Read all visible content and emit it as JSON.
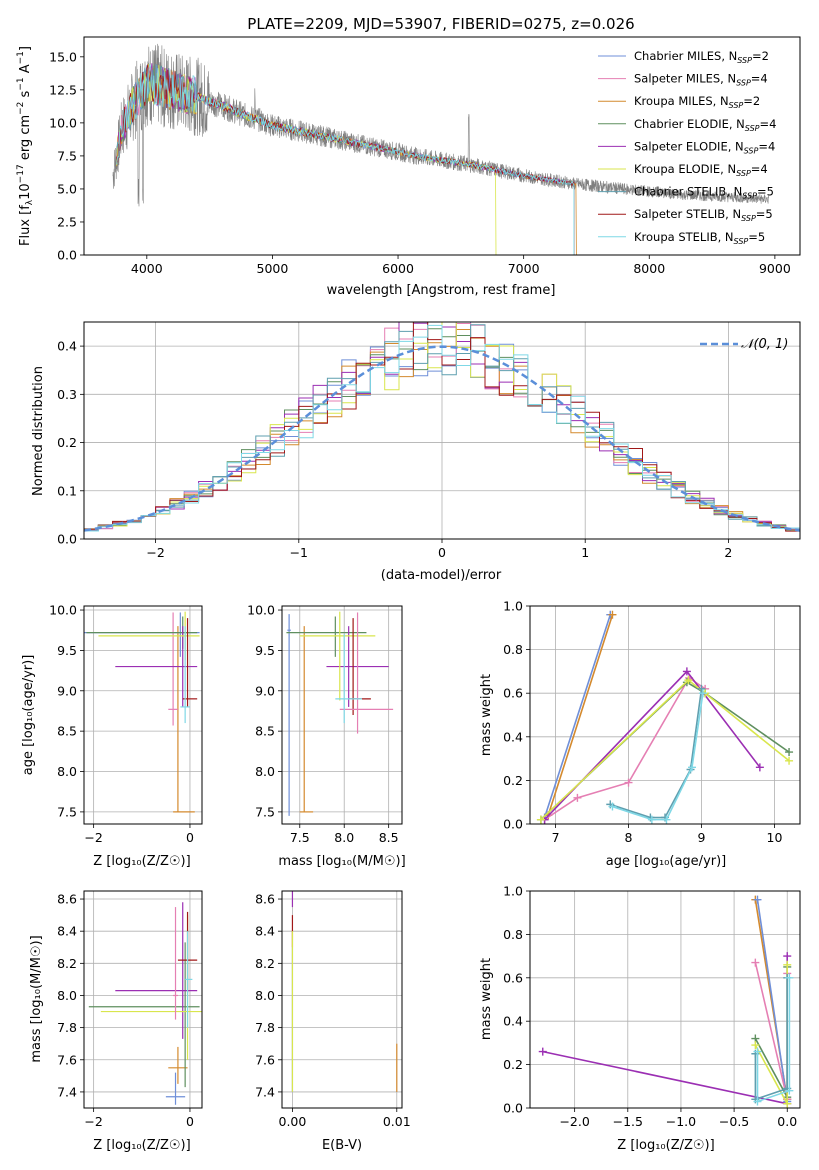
{
  "chart_data": [
    {
      "id": "spectrum",
      "type": "line",
      "title": "PLATE=2209, MJD=53907, FIBERID=0275, z=0.026",
      "xlabel": "wavelength [Angstrom, rest frame]",
      "ylabel_parts": [
        "Flux [f",
        "λ",
        "10",
        "−17",
        " erg cm",
        "−2",
        " s",
        "−1",
        " A",
        "−1",
        "]"
      ],
      "xlim": [
        3500,
        9200
      ],
      "ylim": [
        0,
        16.5
      ],
      "xticks": [
        4000,
        5000,
        6000,
        7000,
        8000,
        9000
      ],
      "yticks": [
        0.0,
        2.5,
        5.0,
        7.5,
        10.0,
        12.5,
        15.0
      ],
      "legend_position": "top-right",
      "observed_color": "#808080",
      "legend": [
        {
          "name": "Chabrier MILES",
          "nssp": "2",
          "color": "#6f8fd8"
        },
        {
          "name": "Salpeter MILES",
          "nssp": "4",
          "color": "#e57fb3"
        },
        {
          "name": "Kroupa MILES",
          "nssp": "2",
          "color": "#d48a2e"
        },
        {
          "name": "Chabrier ELODIE",
          "nssp": "4",
          "color": "#5f8f5f"
        },
        {
          "name": "Salpeter ELODIE",
          "nssp": "4",
          "color": "#9b2fb3"
        },
        {
          "name": "Kroupa ELODIE",
          "nssp": "4",
          "color": "#d9e64d"
        },
        {
          "name": "Chabrier STELIB",
          "nssp": "5",
          "color": "#5f9faf"
        },
        {
          "name": "Salpeter STELIB",
          "nssp": "5",
          "color": "#a01818"
        },
        {
          "name": "Kroupa STELIB",
          "nssp": "5",
          "color": "#7fd8e6"
        }
      ],
      "continuum": {
        "x": [
          3730,
          3800,
          3900,
          4000,
          4100,
          4200,
          4300,
          4400,
          4500,
          4600,
          4700,
          4800,
          4900,
          5000,
          5200,
          5400,
          5600,
          5800,
          6000,
          6200,
          6400,
          6600,
          6800,
          7000,
          7200,
          7400,
          7600,
          7800,
          8000,
          8200,
          8400,
          8600,
          8800,
          8950
        ],
        "y": [
          6.0,
          9.5,
          11.5,
          13.0,
          12.8,
          12.5,
          12.2,
          12.0,
          11.6,
          11.3,
          10.9,
          10.5,
          10.2,
          9.8,
          9.4,
          9.0,
          8.6,
          8.2,
          7.8,
          7.4,
          7.1,
          6.8,
          6.4,
          6.0,
          5.7,
          5.4,
          5.2,
          5.0,
          4.8,
          4.6,
          4.5,
          4.4,
          4.3,
          4.2
        ]
      }
    },
    {
      "id": "residuals",
      "type": "step",
      "xlabel": "(data-model)/error",
      "ylabel": "Normed distribution",
      "xlim": [
        -2.5,
        2.5
      ],
      "ylim": [
        0,
        0.45
      ],
      "xticks": [
        -2,
        -1,
        0,
        1,
        2
      ],
      "yticks": [
        0.0,
        0.1,
        0.2,
        0.3,
        0.4
      ],
      "legend_label": "𝒩(0, 1)",
      "legend_position": "top-right",
      "gaussian_color": "#5b8fd9",
      "bin_edges_start": -2.5,
      "bin_width": 0.1
    },
    {
      "id": "age-z",
      "type": "errorbar",
      "xlabel": "Z [log₁₀(Z/Z☉)]",
      "ylabel": "age  [log₁₀(age/yr)]",
      "xlim": [
        -2.2,
        0.25
      ],
      "ylim": [
        7.35,
        10.05
      ],
      "xticks": [
        -2,
        0
      ],
      "yticks": [
        7.5,
        8.0,
        8.5,
        9.0,
        9.5,
        10.0
      ],
      "series": [
        {
          "color": "#6f8fd8",
          "x": -0.2,
          "y": 9.72,
          "xerr": [
            2.0,
            0.4
          ],
          "yerr": [
            0.3,
            0.25
          ]
        },
        {
          "color": "#d48a2e",
          "x": -0.25,
          "y": 7.5,
          "xerr": [
            0.1,
            0.35
          ],
          "yerr": [
            0.0,
            2.3
          ]
        },
        {
          "color": "#e57fb3",
          "x": -0.35,
          "y": 8.77,
          "xerr": [
            0.1,
            0.1
          ],
          "yerr": [
            0.2,
            1.2
          ]
        },
        {
          "color": "#5f8f5f",
          "x": -0.15,
          "y": 9.72,
          "xerr": [
            2.0,
            0.3
          ],
          "yerr": [
            0.2,
            0.2
          ]
        },
        {
          "color": "#9b2fb3",
          "x": -0.15,
          "y": 9.3,
          "xerr": [
            1.4,
            0.3
          ],
          "yerr": [
            0.5,
            0.5
          ]
        },
        {
          "color": "#d9e64d",
          "x": -0.1,
          "y": 9.68,
          "xerr": [
            1.8,
            0.3
          ],
          "yerr": [
            0.3,
            0.3
          ]
        },
        {
          "color": "#a01818",
          "x": -0.05,
          "y": 8.9,
          "xerr": [
            0.1,
            0.2
          ],
          "yerr": [
            0.1,
            1.0
          ]
        },
        {
          "color": "#7fd8e6",
          "x": -0.1,
          "y": 8.8,
          "xerr": [
            0.1,
            0.1
          ],
          "yerr": [
            0.2,
            1.0
          ]
        }
      ]
    },
    {
      "id": "age-mass",
      "type": "errorbar",
      "xlabel": "mass [log₁₀(M/M☉)]",
      "xlim": [
        7.3,
        8.65
      ],
      "ylim": [
        7.35,
        10.05
      ],
      "xticks": [
        7.5,
        8.0,
        8.5
      ],
      "yticks": [
        7.5,
        8.0,
        8.5,
        9.0,
        9.5,
        10.0
      ],
      "series": [
        {
          "color": "#6f8fd8",
          "x": 7.38,
          "y": 9.75,
          "xerr": [
            0.02,
            0.02
          ],
          "yerr": [
            2.3,
            0.2
          ]
        },
        {
          "color": "#d48a2e",
          "x": 7.55,
          "y": 7.5,
          "xerr": [
            0.05,
            0.1
          ],
          "yerr": [
            0.0,
            2.3
          ]
        },
        {
          "color": "#5f8f5f",
          "x": 7.9,
          "y": 9.72,
          "xerr": [
            0.55,
            0.35
          ],
          "yerr": [
            0.3,
            0.2
          ]
        },
        {
          "color": "#9b2fb3",
          "x": 8.05,
          "y": 9.3,
          "xerr": [
            0.25,
            0.45
          ],
          "yerr": [
            0.5,
            0.5
          ]
        },
        {
          "color": "#d9e64d",
          "x": 7.95,
          "y": 9.68,
          "xerr": [
            0.45,
            0.4
          ],
          "yerr": [
            0.8,
            0.3
          ]
        },
        {
          "color": "#a01818",
          "x": 8.1,
          "y": 8.9,
          "xerr": [
            0.05,
            0.2
          ],
          "yerr": [
            0.2,
            1.0
          ]
        },
        {
          "color": "#e57fb3",
          "x": 8.15,
          "y": 8.77,
          "xerr": [
            0.2,
            0.4
          ],
          "yerr": [
            0.3,
            1.2
          ]
        },
        {
          "color": "#7fd8e6",
          "x": 8.0,
          "y": 8.9,
          "xerr": [
            0.1,
            0.2
          ],
          "yerr": [
            0.3,
            0.8
          ]
        }
      ]
    },
    {
      "id": "weight-age",
      "type": "line",
      "xlabel": "age  [log₁₀(age/yr)]",
      "ylabel": "mass weight",
      "xlim": [
        6.65,
        10.35
      ],
      "ylim": [
        0,
        1.0
      ],
      "xticks": [
        7,
        8,
        9,
        10
      ],
      "yticks": [
        0.0,
        0.2,
        0.4,
        0.6,
        0.8,
        1.0
      ],
      "series": [
        {
          "color": "#6f8fd8",
          "x": [
            6.85,
            7.75
          ],
          "y": [
            0.03,
            0.96
          ]
        },
        {
          "color": "#d48a2e",
          "x": [
            6.9,
            7.78
          ],
          "y": [
            0.04,
            0.96
          ]
        },
        {
          "color": "#e57fb3",
          "x": [
            6.85,
            7.3,
            8.0,
            8.83,
            9.05
          ],
          "y": [
            0.02,
            0.12,
            0.19,
            0.67,
            0.62
          ]
        },
        {
          "color": "#5f8f5f",
          "x": [
            6.8,
            8.8,
            9.05,
            10.2
          ],
          "y": [
            0.02,
            0.65,
            0.6,
            0.33
          ]
        },
        {
          "color": "#9b2fb3",
          "x": [
            6.85,
            8.8,
            9.8
          ],
          "y": [
            0.02,
            0.7,
            0.26
          ]
        },
        {
          "color": "#d9e64d",
          "x": [
            6.8,
            8.82,
            9.05,
            10.2
          ],
          "y": [
            0.02,
            0.66,
            0.6,
            0.29
          ]
        },
        {
          "color": "#5f9faf",
          "x": [
            7.75,
            8.3,
            8.5,
            8.85,
            9.0
          ],
          "y": [
            0.09,
            0.03,
            0.03,
            0.25,
            0.62
          ]
        },
        {
          "color": "#7fd8e6",
          "x": [
            7.78,
            8.32,
            8.52,
            8.87,
            9.02
          ],
          "y": [
            0.08,
            0.02,
            0.02,
            0.26,
            0.6
          ]
        }
      ]
    },
    {
      "id": "mass-z",
      "type": "errorbar",
      "xlabel": "Z [log₁₀(Z/Z☉)]",
      "ylabel": "mass [log₁₀(M/M☉)]",
      "xlim": [
        -2.2,
        0.25
      ],
      "ylim": [
        7.3,
        8.65
      ],
      "xticks": [
        -2,
        0
      ],
      "yticks": [
        7.4,
        7.6,
        7.8,
        8.0,
        8.2,
        8.4,
        8.6
      ],
      "series": [
        {
          "color": "#6f8fd8",
          "x": -0.3,
          "y": 7.37,
          "xerr": [
            0.2,
            0.2
          ],
          "yerr": [
            0.05,
            0.15
          ]
        },
        {
          "color": "#d48a2e",
          "x": -0.25,
          "y": 7.55,
          "xerr": [
            0.2,
            0.2
          ],
          "yerr": [
            0.1,
            0.13
          ]
        },
        {
          "color": "#5f8f5f",
          "x": -0.1,
          "y": 7.93,
          "xerr": [
            2.0,
            0.3
          ],
          "yerr": [
            0.5,
            0.4
          ]
        },
        {
          "color": "#9b2fb3",
          "x": -0.15,
          "y": 8.03,
          "xerr": [
            1.4,
            0.3
          ],
          "yerr": [
            0.3,
            0.55
          ]
        },
        {
          "color": "#d9e64d",
          "x": -0.05,
          "y": 7.9,
          "xerr": [
            1.8,
            0.3
          ],
          "yerr": [
            0.3,
            0.6
          ]
        },
        {
          "color": "#a01818",
          "x": -0.05,
          "y": 8.22,
          "xerr": [
            0.2,
            0.2
          ],
          "yerr": [
            0.2,
            0.3
          ]
        },
        {
          "color": "#e57fb3",
          "x": -0.3,
          "y": 8.0,
          "xerr": [
            0.05,
            0.05
          ],
          "yerr": [
            0.15,
            0.55
          ]
        },
        {
          "color": "#7fd8e6",
          "x": -0.05,
          "y": 8.1,
          "xerr": [
            0.05,
            0.1
          ],
          "yerr": [
            0.3,
            0.3
          ]
        }
      ]
    },
    {
      "id": "mass-ebv",
      "type": "errorbar",
      "xlabel": "E(B-V)",
      "xlim": [
        -0.001,
        0.0105
      ],
      "ylim": [
        7.3,
        8.65
      ],
      "xticks": [
        0.0,
        0.01
      ],
      "xtick_labels": [
        "0.00",
        "0.01"
      ],
      "yticks": [
        7.4,
        7.6,
        7.8,
        8.0,
        8.2,
        8.4,
        8.6
      ],
      "series": [
        {
          "color": "#6f8fd8",
          "x": 0.0,
          "y": 8.0,
          "yerr": [
            0.6,
            0.3
          ]
        },
        {
          "color": "#a01818",
          "x": 0.0,
          "y": 8.4,
          "yerr": [
            0.1,
            0.1
          ]
        },
        {
          "color": "#9b2fb3",
          "x": 0.0,
          "y": 8.6,
          "yerr": [
            0.05,
            0.05
          ]
        },
        {
          "color": "#d9e64d",
          "x": 0.0,
          "y": 7.8,
          "yerr": [
            0.4,
            0.6
          ]
        },
        {
          "color": "#d48a2e",
          "x": 0.01,
          "y": 7.6,
          "yerr": [
            0.2,
            0.1
          ]
        }
      ]
    },
    {
      "id": "weight-z",
      "type": "line",
      "xlabel": "Z [log₁₀(Z/Z☉)]",
      "ylabel": "mass weight",
      "xlim": [
        -2.42,
        0.12
      ],
      "ylim": [
        0,
        1.0
      ],
      "xticks": [
        -2.0,
        -1.5,
        -1.0,
        -0.5,
        0.0
      ],
      "xtick_labels": [
        "−2.0",
        "−1.5",
        "−1.0",
        "−0.5",
        "0.0"
      ],
      "yticks": [
        0.0,
        0.2,
        0.4,
        0.6,
        0.8,
        1.0
      ],
      "series": [
        {
          "color": "#9b2fb3",
          "x": [
            -2.3,
            0.0,
            0.0
          ],
          "y": [
            0.26,
            0.02,
            0.7
          ]
        },
        {
          "color": "#d48a2e",
          "x": [
            -0.3,
            0.0
          ],
          "y": [
            0.96,
            0.04
          ]
        },
        {
          "color": "#6f8fd8",
          "x": [
            -0.28,
            0.0
          ],
          "y": [
            0.96,
            0.03
          ]
        },
        {
          "color": "#e57fb3",
          "x": [
            -0.3,
            0.0,
            0.0
          ],
          "y": [
            0.67,
            0.04,
            0.62
          ]
        },
        {
          "color": "#5f8f5f",
          "x": [
            -0.3,
            0.0,
            0.0
          ],
          "y": [
            0.32,
            0.05,
            0.65
          ]
        },
        {
          "color": "#d9e64d",
          "x": [
            -0.3,
            0.0,
            0.0
          ],
          "y": [
            0.29,
            0.02,
            0.66
          ]
        },
        {
          "color": "#5f9faf",
          "x": [
            -0.3,
            -0.3,
            0.0,
            0.0
          ],
          "y": [
            0.25,
            0.04,
            0.09,
            0.6
          ]
        },
        {
          "color": "#7fd8e6",
          "x": [
            -0.28,
            -0.28,
            0.02,
            0.02
          ],
          "y": [
            0.26,
            0.03,
            0.08,
            0.6
          ]
        }
      ]
    }
  ]
}
